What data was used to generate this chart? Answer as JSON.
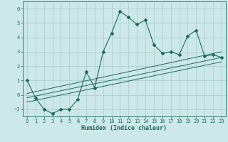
{
  "xlabel": "Humidex (Indice chaleur)",
  "ylabel": "",
  "xlim": [
    -0.5,
    23.5
  ],
  "ylim": [
    -1.5,
    6.5
  ],
  "xticks": [
    0,
    1,
    2,
    3,
    4,
    5,
    6,
    7,
    8,
    9,
    10,
    11,
    12,
    13,
    14,
    15,
    16,
    17,
    18,
    19,
    20,
    21,
    22,
    23
  ],
  "yticks": [
    -1,
    0,
    1,
    2,
    3,
    4,
    5,
    6
  ],
  "bg_color": "#cce8e8",
  "line_color": "#1a6b5e",
  "grid_color": "#aacccc",
  "main_x": [
    0,
    1,
    2,
    3,
    4,
    5,
    6,
    7,
    8,
    9,
    10,
    11,
    12,
    13,
    14,
    15,
    16,
    17,
    18,
    19,
    20,
    21,
    22,
    23
  ],
  "main_y": [
    1.0,
    -0.2,
    -1.0,
    -1.3,
    -1.0,
    -1.0,
    -0.3,
    1.6,
    0.5,
    3.0,
    4.3,
    5.8,
    5.4,
    4.9,
    5.2,
    3.5,
    2.9,
    3.0,
    2.8,
    4.1,
    4.5,
    2.7,
    2.8,
    2.6
  ],
  "line1_x": [
    0,
    23
  ],
  "line1_y": [
    -0.2,
    2.6
  ],
  "line2_x": [
    0,
    23
  ],
  "line2_y": [
    -0.5,
    2.3
  ],
  "line3_x": [
    0,
    23
  ],
  "line3_y": [
    0.1,
    3.0
  ]
}
